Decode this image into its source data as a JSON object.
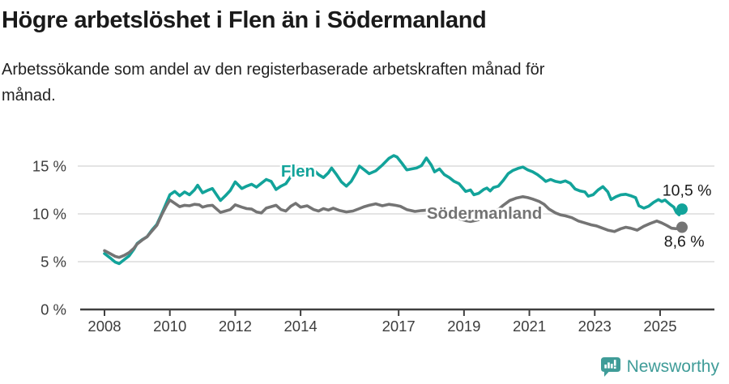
{
  "title": "Högre arbetslöshet i Flen än i Södermanland",
  "subtitle_lines": [
    "Arbetssökande som andel av den registerbaserade arbetskraften månad för",
    "månad."
  ],
  "branding": {
    "name": "Newsworthy",
    "logo_icon": "speech-bubble-bar-chart-icon"
  },
  "colors": {
    "flen_teal": "#12A39A",
    "sodermanland_gray": "#747474",
    "grid": "#DCDCDC",
    "axis": "#3F3F3F",
    "axis_text": "#3D3D3D",
    "annotation_text": "#1A1A1A",
    "logo_teal": "#3F9C98"
  },
  "chart_data": {
    "type": "line",
    "title": "Högre arbetslöshet i Flen än i Södermanland",
    "subtitle": "Arbetssökande som andel av den registerbaserade arbetskraften månad för månad.",
    "unit": "%",
    "grid": true,
    "x_axis": {
      "ticks": [
        {
          "value": 2008,
          "label": "2008"
        },
        {
          "value": 2010,
          "label": "2010"
        },
        {
          "value": 2012,
          "label": "2012"
        },
        {
          "value": 2014,
          "label": "2014"
        },
        {
          "value": 2017,
          "label": "2017"
        },
        {
          "value": 2019,
          "label": "2019"
        },
        {
          "value": 2021,
          "label": "2021"
        },
        {
          "value": 2023,
          "label": "2023"
        },
        {
          "value": 2025,
          "label": "2025"
        }
      ]
    },
    "y_axis": {
      "range": [
        0,
        17
      ],
      "ticks": [
        {
          "value": 0,
          "label": "0 %"
        },
        {
          "value": 5,
          "label": "5 %"
        },
        {
          "value": 10,
          "label": "10 %"
        },
        {
          "value": 15,
          "label": "15 %"
        }
      ]
    },
    "series": [
      {
        "name": "Flen",
        "color": "#12A39A",
        "label_pos": {
          "x": 2013.4,
          "y": 13.9
        },
        "last_value_label": "10,5 %",
        "points": [
          [
            2008.0,
            5.85
          ],
          [
            2008.17,
            5.4
          ],
          [
            2008.33,
            4.95
          ],
          [
            2008.45,
            4.8
          ],
          [
            2008.6,
            5.2
          ],
          [
            2008.75,
            5.6
          ],
          [
            2008.9,
            6.3
          ],
          [
            2009.0,
            6.9
          ],
          [
            2009.15,
            7.3
          ],
          [
            2009.3,
            7.6
          ],
          [
            2009.45,
            8.3
          ],
          [
            2009.6,
            8.9
          ],
          [
            2009.75,
            10.0
          ],
          [
            2009.9,
            11.2
          ],
          [
            2010.0,
            12.0
          ],
          [
            2010.15,
            12.35
          ],
          [
            2010.3,
            11.9
          ],
          [
            2010.45,
            12.3
          ],
          [
            2010.6,
            12.0
          ],
          [
            2010.75,
            12.5
          ],
          [
            2010.85,
            13.0
          ],
          [
            2011.0,
            12.2
          ],
          [
            2011.15,
            12.45
          ],
          [
            2011.3,
            12.65
          ],
          [
            2011.45,
            11.9
          ],
          [
            2011.55,
            11.4
          ],
          [
            2011.7,
            11.9
          ],
          [
            2011.85,
            12.45
          ],
          [
            2012.0,
            13.35
          ],
          [
            2012.2,
            12.65
          ],
          [
            2012.35,
            12.9
          ],
          [
            2012.5,
            13.1
          ],
          [
            2012.65,
            12.8
          ],
          [
            2012.8,
            13.2
          ],
          [
            2012.95,
            13.6
          ],
          [
            2013.1,
            13.4
          ],
          [
            2013.25,
            12.55
          ],
          [
            2013.4,
            12.9
          ],
          [
            2013.55,
            13.15
          ],
          [
            2013.7,
            13.9
          ],
          [
            2013.85,
            14.15
          ],
          [
            2014.0,
            13.9
          ],
          [
            2014.2,
            14.4
          ],
          [
            2014.4,
            14.6
          ],
          [
            2014.55,
            14.1
          ],
          [
            2014.7,
            13.8
          ],
          [
            2014.85,
            14.3
          ],
          [
            2014.95,
            14.8
          ],
          [
            2015.1,
            14.1
          ],
          [
            2015.25,
            13.35
          ],
          [
            2015.4,
            12.9
          ],
          [
            2015.55,
            13.4
          ],
          [
            2015.7,
            14.3
          ],
          [
            2015.8,
            15.0
          ],
          [
            2015.95,
            14.6
          ],
          [
            2016.1,
            14.2
          ],
          [
            2016.3,
            14.5
          ],
          [
            2016.5,
            15.1
          ],
          [
            2016.7,
            15.8
          ],
          [
            2016.85,
            16.1
          ],
          [
            2016.95,
            15.95
          ],
          [
            2017.1,
            15.3
          ],
          [
            2017.25,
            14.6
          ],
          [
            2017.4,
            14.7
          ],
          [
            2017.55,
            14.8
          ],
          [
            2017.7,
            15.05
          ],
          [
            2017.85,
            15.85
          ],
          [
            2018.0,
            15.1
          ],
          [
            2018.1,
            14.4
          ],
          [
            2018.25,
            14.7
          ],
          [
            2018.4,
            14.1
          ],
          [
            2018.55,
            13.8
          ],
          [
            2018.7,
            13.4
          ],
          [
            2018.85,
            13.15
          ],
          [
            2019.05,
            12.35
          ],
          [
            2019.2,
            12.5
          ],
          [
            2019.3,
            12.0
          ],
          [
            2019.45,
            12.15
          ],
          [
            2019.6,
            12.55
          ],
          [
            2019.7,
            12.7
          ],
          [
            2019.8,
            12.4
          ],
          [
            2019.9,
            12.75
          ],
          [
            2020.05,
            12.9
          ],
          [
            2020.2,
            13.5
          ],
          [
            2020.35,
            14.2
          ],
          [
            2020.5,
            14.55
          ],
          [
            2020.65,
            14.75
          ],
          [
            2020.8,
            14.9
          ],
          [
            2020.95,
            14.6
          ],
          [
            2021.1,
            14.4
          ],
          [
            2021.25,
            14.1
          ],
          [
            2021.4,
            13.7
          ],
          [
            2021.5,
            13.4
          ],
          [
            2021.65,
            13.6
          ],
          [
            2021.8,
            13.4
          ],
          [
            2021.95,
            13.3
          ],
          [
            2022.1,
            13.45
          ],
          [
            2022.25,
            13.2
          ],
          [
            2022.4,
            12.6
          ],
          [
            2022.55,
            12.4
          ],
          [
            2022.7,
            12.3
          ],
          [
            2022.8,
            11.85
          ],
          [
            2022.95,
            12.0
          ],
          [
            2023.1,
            12.5
          ],
          [
            2023.25,
            12.85
          ],
          [
            2023.4,
            12.3
          ],
          [
            2023.5,
            11.5
          ],
          [
            2023.65,
            11.8
          ],
          [
            2023.8,
            12.0
          ],
          [
            2023.95,
            12.05
          ],
          [
            2024.1,
            11.9
          ],
          [
            2024.25,
            11.7
          ],
          [
            2024.35,
            10.85
          ],
          [
            2024.5,
            10.6
          ],
          [
            2024.65,
            10.8
          ],
          [
            2024.8,
            11.2
          ],
          [
            2024.95,
            11.5
          ],
          [
            2025.05,
            11.3
          ],
          [
            2025.15,
            11.45
          ],
          [
            2025.3,
            11.0
          ],
          [
            2025.42,
            10.7
          ],
          [
            2025.5,
            10.15
          ],
          [
            2025.58,
            9.9
          ],
          [
            2025.67,
            10.5
          ]
        ]
      },
      {
        "name": "Södermanland",
        "color": "#747474",
        "label_pos": {
          "x": 2017.86,
          "y": 9.5
        },
        "last_value_label": "8,6 %",
        "points": [
          [
            2008.0,
            6.15
          ],
          [
            2008.17,
            5.85
          ],
          [
            2008.33,
            5.55
          ],
          [
            2008.45,
            5.45
          ],
          [
            2008.6,
            5.65
          ],
          [
            2008.75,
            5.95
          ],
          [
            2008.9,
            6.4
          ],
          [
            2009.0,
            6.85
          ],
          [
            2009.15,
            7.25
          ],
          [
            2009.3,
            7.6
          ],
          [
            2009.45,
            8.2
          ],
          [
            2009.6,
            8.8
          ],
          [
            2009.75,
            9.9
          ],
          [
            2009.9,
            10.9
          ],
          [
            2010.0,
            11.45
          ],
          [
            2010.15,
            11.1
          ],
          [
            2010.3,
            10.75
          ],
          [
            2010.45,
            10.9
          ],
          [
            2010.6,
            10.85
          ],
          [
            2010.75,
            11.0
          ],
          [
            2010.9,
            10.95
          ],
          [
            2011.0,
            10.7
          ],
          [
            2011.15,
            10.85
          ],
          [
            2011.3,
            10.9
          ],
          [
            2011.45,
            10.45
          ],
          [
            2011.55,
            10.15
          ],
          [
            2011.7,
            10.3
          ],
          [
            2011.85,
            10.45
          ],
          [
            2012.0,
            10.95
          ],
          [
            2012.2,
            10.7
          ],
          [
            2012.35,
            10.55
          ],
          [
            2012.5,
            10.5
          ],
          [
            2012.65,
            10.2
          ],
          [
            2012.8,
            10.1
          ],
          [
            2012.95,
            10.6
          ],
          [
            2013.1,
            10.75
          ],
          [
            2013.25,
            10.9
          ],
          [
            2013.4,
            10.45
          ],
          [
            2013.55,
            10.3
          ],
          [
            2013.7,
            10.8
          ],
          [
            2013.85,
            11.1
          ],
          [
            2014.0,
            10.7
          ],
          [
            2014.2,
            10.85
          ],
          [
            2014.4,
            10.45
          ],
          [
            2014.55,
            10.3
          ],
          [
            2014.7,
            10.55
          ],
          [
            2014.85,
            10.4
          ],
          [
            2015.0,
            10.6
          ],
          [
            2015.2,
            10.35
          ],
          [
            2015.4,
            10.2
          ],
          [
            2015.6,
            10.3
          ],
          [
            2015.8,
            10.55
          ],
          [
            2015.95,
            10.75
          ],
          [
            2016.1,
            10.9
          ],
          [
            2016.3,
            11.05
          ],
          [
            2016.5,
            10.85
          ],
          [
            2016.7,
            11.0
          ],
          [
            2016.9,
            10.9
          ],
          [
            2017.05,
            10.8
          ],
          [
            2017.25,
            10.45
          ],
          [
            2017.5,
            10.25
          ],
          [
            2017.7,
            10.35
          ],
          [
            2017.9,
            10.4
          ],
          [
            2018.1,
            10.3
          ],
          [
            2018.3,
            10.15
          ],
          [
            2018.5,
            9.9
          ],
          [
            2018.7,
            9.7
          ],
          [
            2018.9,
            9.45
          ],
          [
            2019.05,
            9.3
          ],
          [
            2019.2,
            9.2
          ],
          [
            2019.4,
            9.35
          ],
          [
            2019.6,
            9.55
          ],
          [
            2019.8,
            9.9
          ],
          [
            2020.0,
            10.3
          ],
          [
            2020.2,
            10.9
          ],
          [
            2020.4,
            11.4
          ],
          [
            2020.6,
            11.65
          ],
          [
            2020.8,
            11.8
          ],
          [
            2020.95,
            11.7
          ],
          [
            2021.1,
            11.55
          ],
          [
            2021.3,
            11.3
          ],
          [
            2021.45,
            11.0
          ],
          [
            2021.6,
            10.5
          ],
          [
            2021.8,
            10.1
          ],
          [
            2021.95,
            9.9
          ],
          [
            2022.1,
            9.8
          ],
          [
            2022.3,
            9.6
          ],
          [
            2022.5,
            9.25
          ],
          [
            2022.7,
            9.05
          ],
          [
            2022.9,
            8.85
          ],
          [
            2023.05,
            8.75
          ],
          [
            2023.2,
            8.55
          ],
          [
            2023.4,
            8.3
          ],
          [
            2023.6,
            8.15
          ],
          [
            2023.8,
            8.45
          ],
          [
            2023.95,
            8.6
          ],
          [
            2024.1,
            8.5
          ],
          [
            2024.3,
            8.3
          ],
          [
            2024.5,
            8.7
          ],
          [
            2024.7,
            9.0
          ],
          [
            2024.9,
            9.25
          ],
          [
            2025.05,
            9.05
          ],
          [
            2025.2,
            8.8
          ],
          [
            2025.35,
            8.5
          ],
          [
            2025.5,
            8.45
          ],
          [
            2025.67,
            8.6
          ]
        ]
      }
    ],
    "annotations": [
      {
        "text": "10,5 %",
        "x": 2025.07,
        "y": 11.92
      },
      {
        "text": "8,6 %",
        "x": 2025.12,
        "y": 6.55
      }
    ]
  }
}
